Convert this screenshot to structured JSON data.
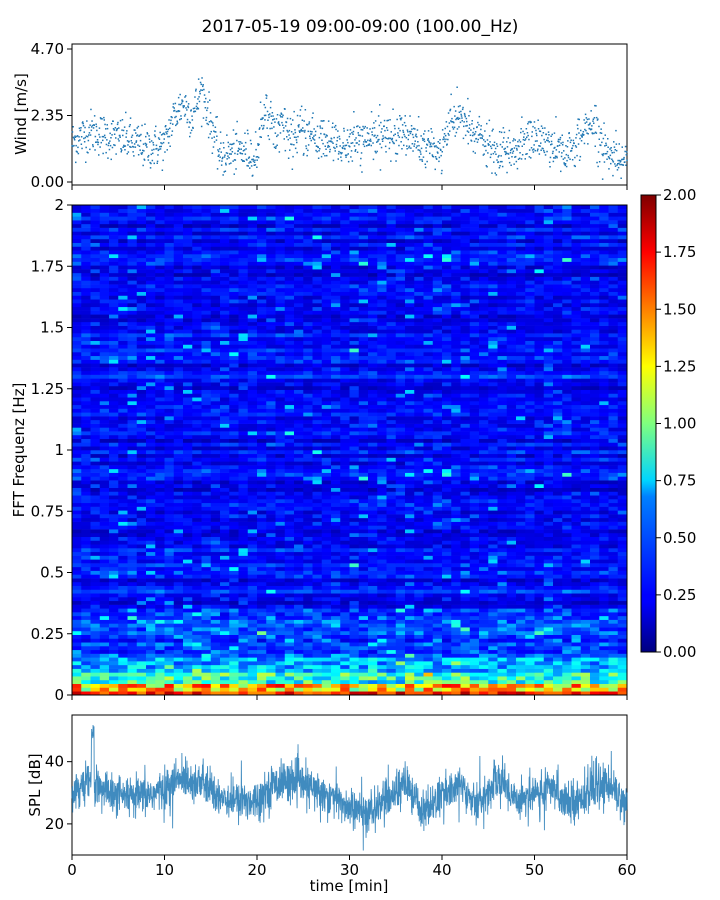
{
  "chart_data": [
    {
      "type": "scatter",
      "title": "2017-05-19 09:00-09:00 (100.00_Hz)",
      "ylabel": "Wind [m/s]",
      "xlim": [
        0,
        60
      ],
      "ylim": [
        0,
        4.7
      ],
      "yticks": [
        "0.00",
        "2.35",
        "4.70"
      ],
      "series": [
        {
          "color": "#1f77b4",
          "anchors_x": [
            0,
            2,
            4,
            6,
            8,
            10,
            11,
            12,
            13,
            14,
            16,
            18,
            20,
            21,
            22,
            24,
            26,
            28,
            30,
            32,
            34,
            36,
            38,
            40,
            41,
            42,
            43,
            44,
            46,
            48,
            50,
            52,
            54,
            56,
            58,
            60
          ],
          "anchors_y": [
            1.4,
            1.8,
            1.6,
            1.5,
            1.2,
            1.3,
            2.3,
            2.8,
            2.3,
            3.3,
            0.9,
            1.1,
            1.0,
            2.6,
            1.9,
            1.7,
            1.6,
            1.4,
            1.3,
            1.5,
            1.6,
            1.8,
            1.2,
            1.1,
            2.1,
            2.4,
            1.8,
            1.6,
            0.9,
            1.2,
            1.6,
            1.3,
            1.0,
            2.2,
            1.0,
            0.8
          ]
        }
      ]
    },
    {
      "type": "heatmap",
      "ylabel": "FFT Frequenz [Hz]",
      "xlim": [
        0,
        60
      ],
      "ylim": [
        0,
        2
      ],
      "yticks": [
        "0",
        "0.25",
        "0.5",
        "0.75",
        "1",
        "1.25",
        "1.5",
        "1.75",
        "2"
      ],
      "colorbar": {
        "min": 0,
        "max": 2,
        "ticks": [
          "0.00",
          "0.25",
          "0.50",
          "0.75",
          "1.00",
          "1.25",
          "1.50",
          "1.75",
          "2.00"
        ],
        "colormap": "jet"
      }
    },
    {
      "type": "line",
      "xlabel": "time [min]",
      "ylabel": "SPL [dB]",
      "xlim": [
        0,
        60
      ],
      "ylim": [
        10,
        55
      ],
      "xticks": [
        "0",
        "10",
        "20",
        "30",
        "40",
        "50",
        "60"
      ],
      "yticks": [
        "20",
        "40"
      ],
      "series": [
        {
          "color": "#1f77b4",
          "anchors_x": [
            0,
            2,
            4,
            6,
            8,
            10,
            12,
            14,
            16,
            18,
            20,
            22,
            24,
            26,
            28,
            30,
            32,
            34,
            36,
            38,
            40,
            42,
            44,
            46,
            48,
            50,
            52,
            54,
            56,
            58,
            60
          ],
          "anchors_y": [
            31,
            33,
            30,
            28,
            29,
            31,
            35,
            33,
            29,
            27,
            28,
            33,
            34,
            31,
            29,
            25,
            23,
            28,
            33,
            24,
            29,
            33,
            26,
            35,
            28,
            30,
            31,
            27,
            30,
            33,
            26
          ]
        }
      ]
    }
  ]
}
